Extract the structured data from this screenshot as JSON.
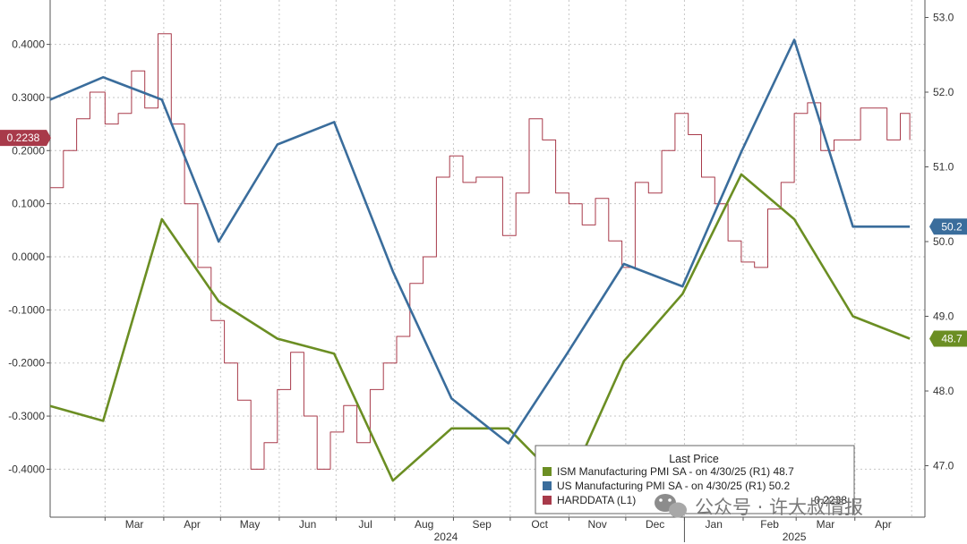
{
  "chart_data": {
    "type": "line",
    "title": "",
    "left_axis": {
      "ylim": [
        -0.45,
        0.47
      ],
      "ticks": [
        "0.4000",
        "0.3000",
        "0.2000",
        "0.1000",
        "0.0000",
        "-0.1000",
        "-0.2000",
        "-0.3000",
        "-0.4000"
      ]
    },
    "right_axis": {
      "ylim": [
        46.7,
        53.1
      ],
      "ticks": [
        "53.0",
        "52.0",
        "51.0",
        "50.0",
        "49.0",
        "48.0",
        "47.0"
      ]
    },
    "x_months": [
      "Mar",
      "Apr",
      "May",
      "Jun",
      "Jul",
      "Aug",
      "Sep",
      "Oct",
      "Nov",
      "Dec",
      "Jan",
      "Feb",
      "Mar",
      "Apr"
    ],
    "x_years": [
      "2024",
      "2025"
    ],
    "grid": true,
    "legend_position": "bottom-right",
    "legend_title": "Last Price",
    "series": [
      {
        "name": "ISM Manufacturing PMI SA",
        "legend_label": "ISM Manufacturing PMI SA - on 4/30/25 (R1) 48.7",
        "last_value": "48.7",
        "axis": "right",
        "color": "#6b8e23",
        "x": [
          "2024-02-01",
          "2024-02-29",
          "2024-03-31",
          "2024-04-30",
          "2024-05-31",
          "2024-06-30",
          "2024-07-31",
          "2024-08-31",
          "2024-09-30",
          "2024-10-31",
          "2024-11-30",
          "2024-12-31",
          "2025-01-31",
          "2025-02-28",
          "2025-03-31",
          "2025-04-30"
        ],
        "values": [
          47.8,
          47.6,
          50.3,
          49.2,
          48.7,
          48.5,
          46.8,
          47.5,
          47.5,
          46.7,
          48.4,
          49.3,
          50.9,
          50.3,
          49.0,
          48.7
        ]
      },
      {
        "name": "US Manufacturing PMI SA",
        "legend_label": "US Manufacturing PMI SA - on 4/30/25 (R1) 50.2",
        "last_value": "50.2",
        "axis": "right",
        "color": "#3a6d9c",
        "x": [
          "2024-02-01",
          "2024-02-29",
          "2024-03-31",
          "2024-04-30",
          "2024-05-31",
          "2024-06-30",
          "2024-07-31",
          "2024-08-31",
          "2024-09-30",
          "2024-10-31",
          "2024-11-30",
          "2024-12-31",
          "2025-01-31",
          "2025-02-28",
          "2025-03-31",
          "2025-04-30"
        ],
        "values": [
          51.9,
          52.2,
          51.9,
          50.0,
          51.3,
          51.6,
          49.6,
          47.9,
          47.3,
          48.5,
          49.7,
          49.4,
          51.2,
          52.7,
          50.2,
          50.2
        ]
      },
      {
        "name": "HARDDATA",
        "legend_label": "HARDDATA (L1)",
        "last_value": "0.2238",
        "axis": "left",
        "color": "#a83a4a",
        "x": [
          "2024-02-01",
          "2024-02-08",
          "2024-02-15",
          "2024-02-22",
          "2024-03-01",
          "2024-03-08",
          "2024-03-15",
          "2024-03-22",
          "2024-03-29",
          "2024-04-05",
          "2024-04-12",
          "2024-04-19",
          "2024-04-26",
          "2024-05-03",
          "2024-05-10",
          "2024-05-17",
          "2024-05-24",
          "2024-05-31",
          "2024-06-07",
          "2024-06-14",
          "2024-06-21",
          "2024-06-28",
          "2024-07-05",
          "2024-07-12",
          "2024-07-19",
          "2024-07-26",
          "2024-08-02",
          "2024-08-09",
          "2024-08-16",
          "2024-08-23",
          "2024-08-30",
          "2024-09-06",
          "2024-09-13",
          "2024-09-20",
          "2024-09-27",
          "2024-10-04",
          "2024-10-11",
          "2024-10-18",
          "2024-10-25",
          "2024-11-01",
          "2024-11-08",
          "2024-11-15",
          "2024-11-22",
          "2024-11-29",
          "2024-12-06",
          "2024-12-13",
          "2024-12-20",
          "2024-12-27",
          "2025-01-03",
          "2025-01-10",
          "2025-01-17",
          "2025-01-24",
          "2025-01-31",
          "2025-02-07",
          "2025-02-14",
          "2025-02-21",
          "2025-02-28",
          "2025-03-07",
          "2025-03-14",
          "2025-03-21",
          "2025-03-28",
          "2025-04-04",
          "2025-04-11",
          "2025-04-18",
          "2025-04-25",
          "2025-04-30"
        ],
        "values": [
          0.13,
          0.2,
          0.26,
          0.31,
          0.25,
          0.27,
          0.35,
          0.28,
          0.42,
          0.25,
          0.1,
          -0.02,
          -0.12,
          -0.2,
          -0.27,
          -0.4,
          -0.35,
          -0.25,
          -0.18,
          -0.3,
          -0.4,
          -0.33,
          -0.28,
          -0.35,
          -0.25,
          -0.2,
          -0.15,
          -0.05,
          0.0,
          0.15,
          0.19,
          0.14,
          0.15,
          0.15,
          0.04,
          0.12,
          0.26,
          0.22,
          0.12,
          0.1,
          0.06,
          0.11,
          0.03,
          -0.02,
          0.14,
          0.12,
          0.2,
          0.27,
          0.23,
          0.15,
          0.1,
          0.03,
          -0.01,
          -0.02,
          0.09,
          0.14,
          0.27,
          0.29,
          0.2,
          0.22,
          0.22,
          0.28,
          0.28,
          0.22,
          0.27,
          0.22
        ]
      }
    ]
  },
  "tags": {
    "left": "0.2238",
    "right_us": "50.2",
    "right_ism": "48.7"
  },
  "watermark": "公众号 · 许大叔情报",
  "colors": {
    "ism": "#6b8e23",
    "us": "#3a6d9c",
    "hard": "#a83a4a",
    "grid": "#c6c6c6"
  }
}
